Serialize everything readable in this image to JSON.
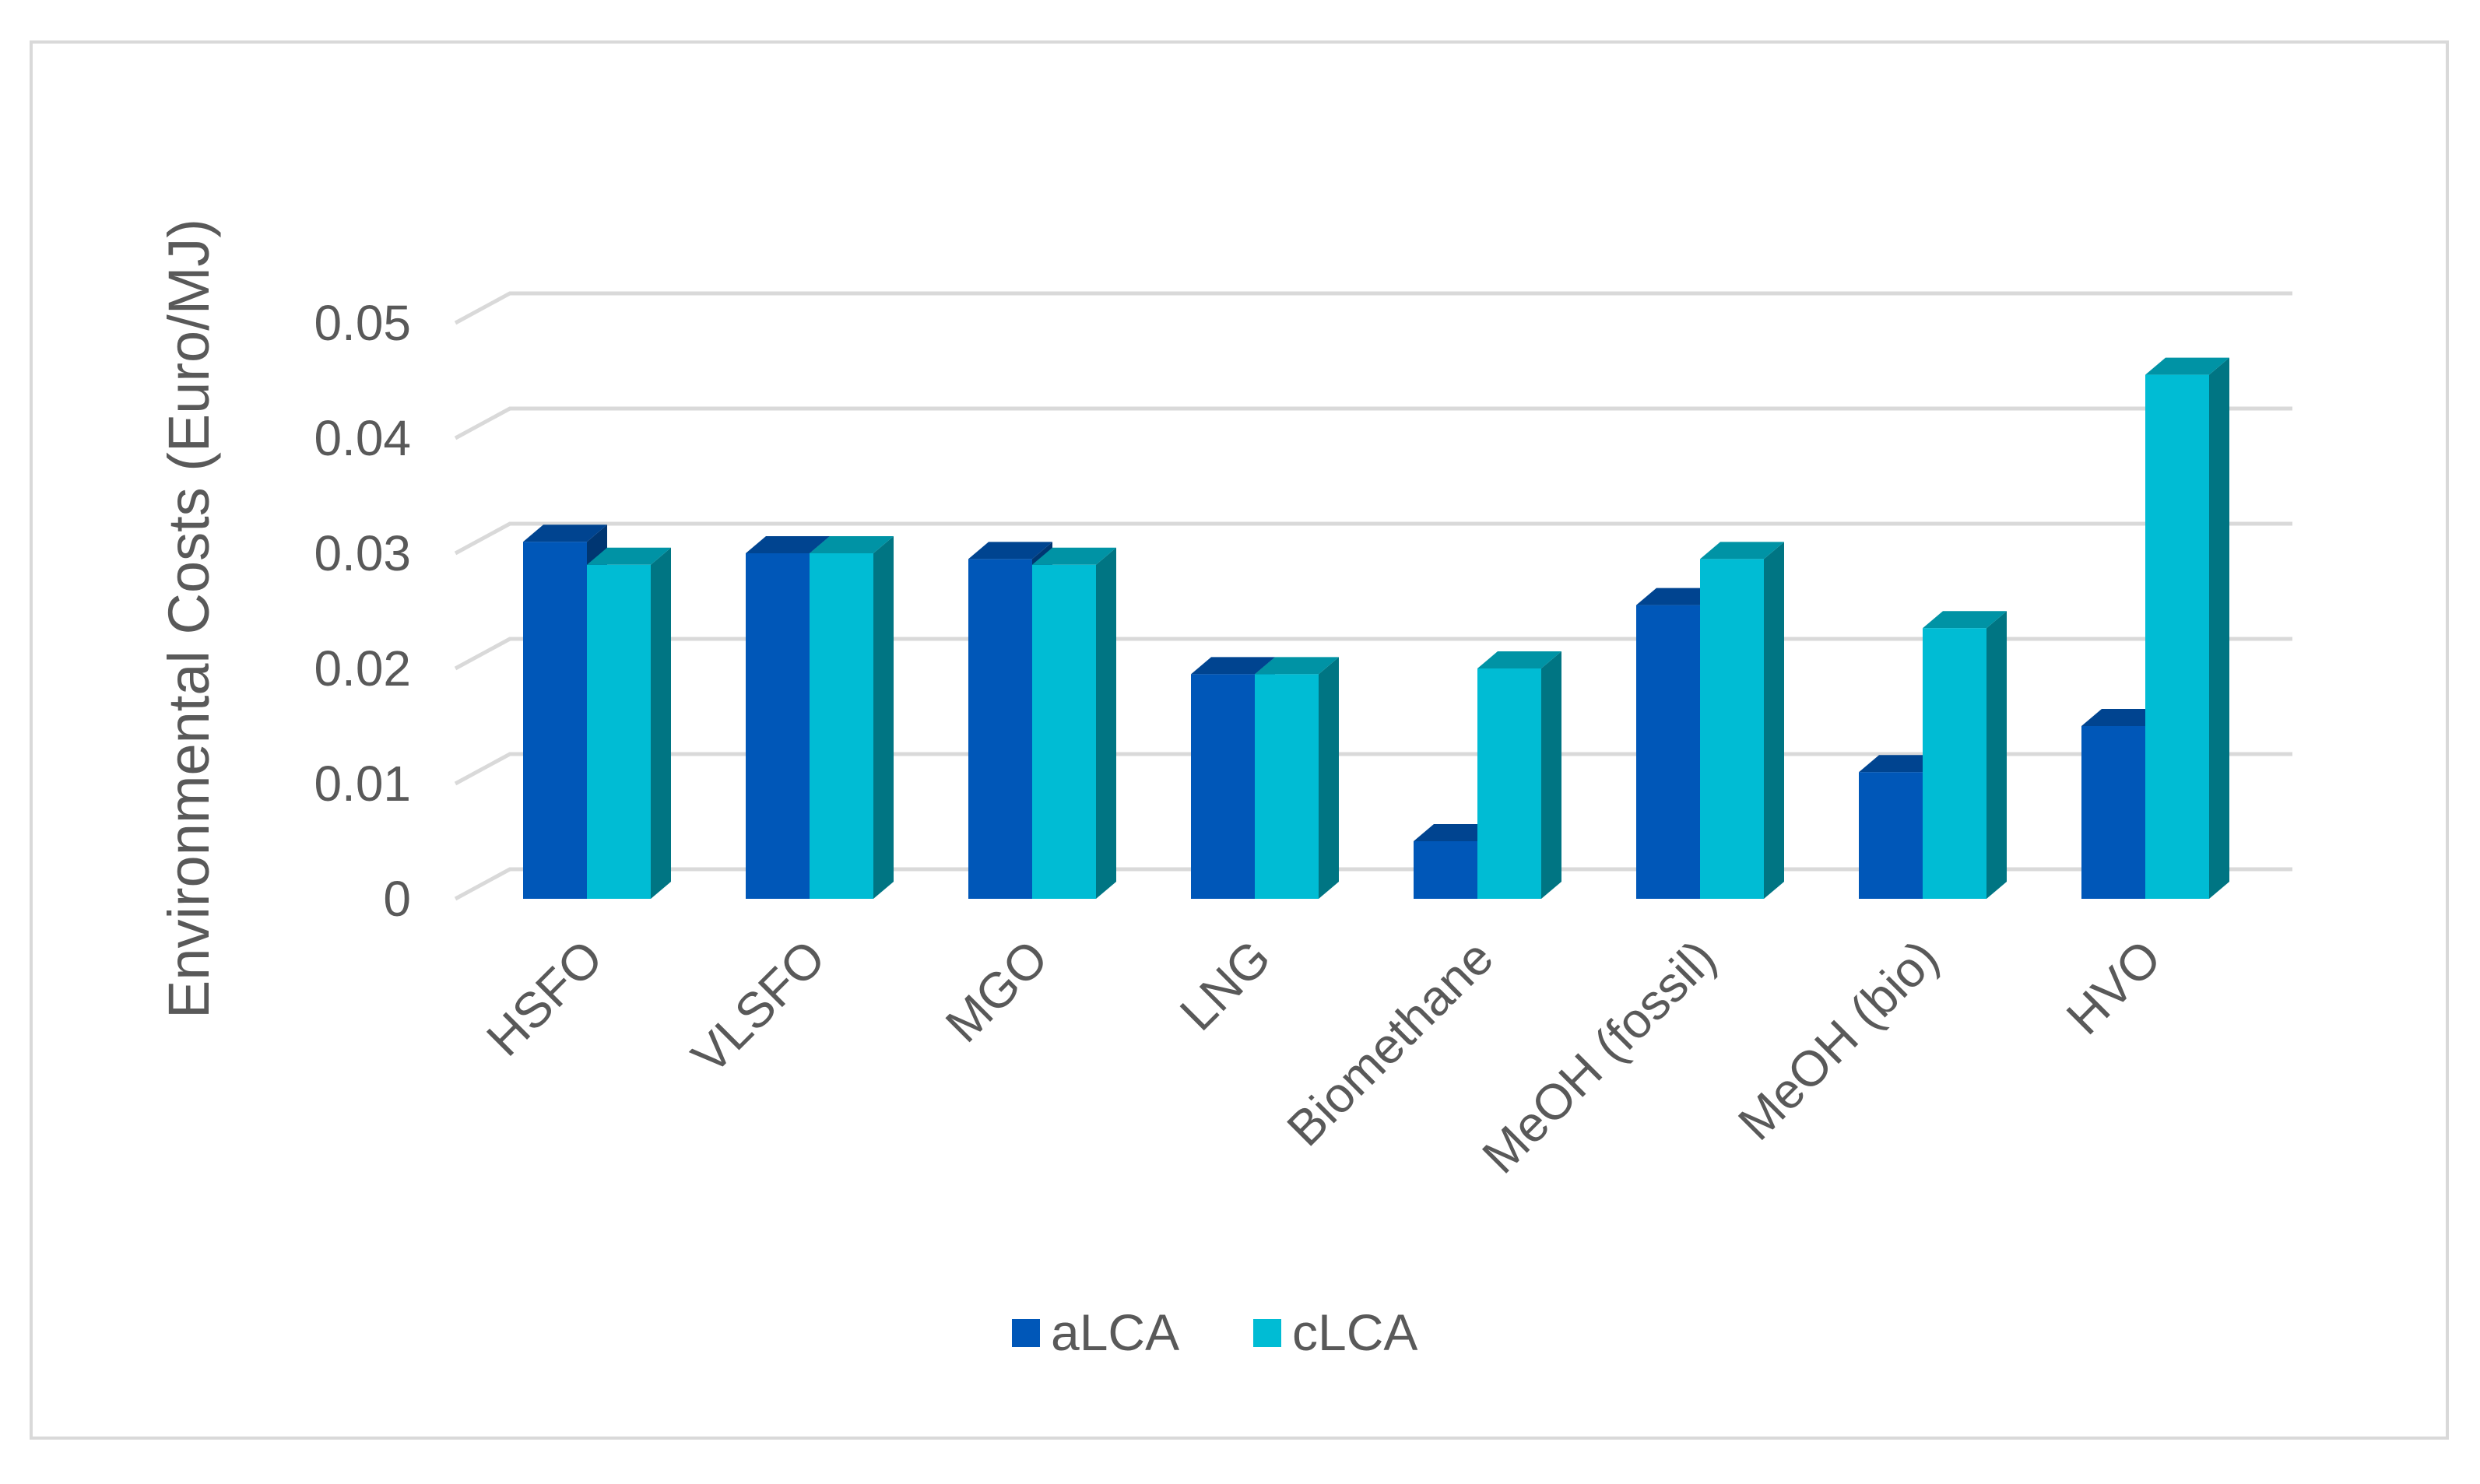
{
  "chart_data": {
    "type": "bar",
    "style": "3d-clustered-column",
    "title": "",
    "xlabel": "",
    "ylabel": "Environmental Costs (Euro/MJ)",
    "ylim": [
      0,
      0.05
    ],
    "yticks": [
      0,
      0.01,
      0.02,
      0.03,
      0.04,
      0.05
    ],
    "ytick_labels": [
      "0",
      "0.01",
      "0.02",
      "0.03",
      "0.04",
      "0.05"
    ],
    "grid": true,
    "legend_position": "bottom-center",
    "categories": [
      "HSFO",
      "VLSFO",
      "MGO",
      "LNG",
      "Biomethane",
      "MeOH (fossil)",
      "MeOH (bio)",
      "HVO"
    ],
    "series": [
      {
        "name": "aLCA",
        "color": "#0057b8",
        "values": [
          0.031,
          0.03,
          0.0295,
          0.0195,
          0.005,
          0.0255,
          0.011,
          0.015
        ]
      },
      {
        "name": "cLCA",
        "color": "#00bcd4",
        "values": [
          0.029,
          0.03,
          0.029,
          0.0195,
          0.02,
          0.0295,
          0.0235,
          0.0455
        ]
      }
    ]
  }
}
